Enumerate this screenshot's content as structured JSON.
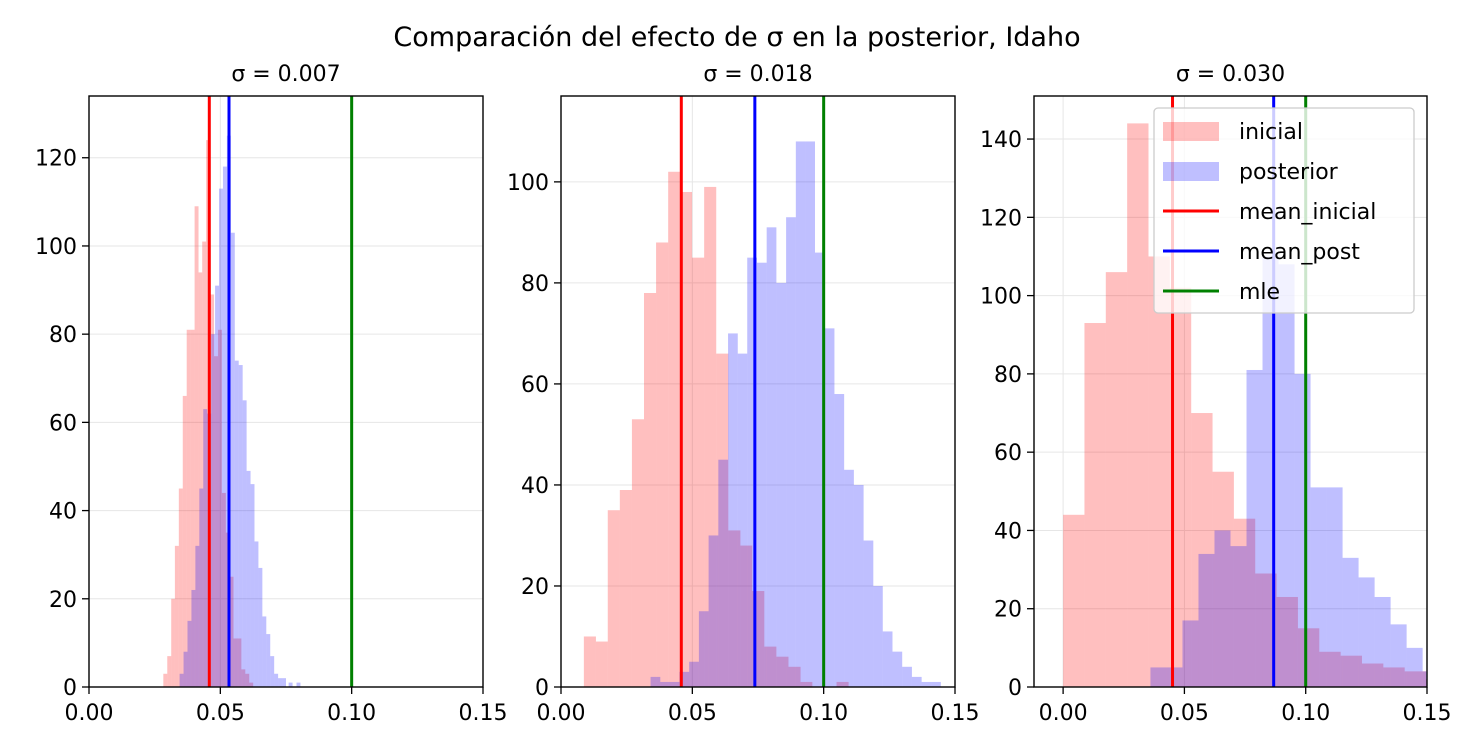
{
  "figure": {
    "suptitle": "Comparación del efecto de σ en la posterior, Idaho"
  },
  "colors": {
    "inicial": "#ff0000",
    "posterior": "#0000ff",
    "mean_inicial": "#ff0000",
    "mean_post": "#0000ff",
    "mle": "#008000"
  },
  "legend": {
    "placement": "upper right (third panel)",
    "entries": [
      {
        "label": "inicial",
        "kind": "patch",
        "color_key": "inicial"
      },
      {
        "label": "posterior",
        "kind": "patch",
        "color_key": "posterior"
      },
      {
        "label": "mean_inicial",
        "kind": "line",
        "color_key": "mean_inicial"
      },
      {
        "label": "mean_post",
        "kind": "line",
        "color_key": "mean_post"
      },
      {
        "label": "mle",
        "kind": "line",
        "color_key": "mle"
      }
    ]
  },
  "chart_data": [
    {
      "type": "histogram",
      "title": "σ = 0.007",
      "xlim": [
        0.0,
        0.15
      ],
      "ylim": [
        0,
        134
      ],
      "xticks": [
        "0.00",
        "0.05",
        "0.10",
        "0.15"
      ],
      "xtick_values": [
        0.0,
        0.05,
        0.1,
        0.15
      ],
      "yticks": [
        0,
        20,
        40,
        60,
        80,
        100,
        120
      ],
      "grid": true,
      "series": [
        {
          "name": "inicial",
          "bins": [
            [
              0.0283,
              0.0298,
              3
            ],
            [
              0.0298,
              0.0313,
              7
            ],
            [
              0.0313,
              0.0327,
              20
            ],
            [
              0.0327,
              0.0342,
              32
            ],
            [
              0.0342,
              0.0357,
              45
            ],
            [
              0.0357,
              0.0372,
              66
            ],
            [
              0.0372,
              0.0387,
              81
            ],
            [
              0.0387,
              0.0402,
              81
            ],
            [
              0.0402,
              0.0417,
              109
            ],
            [
              0.0417,
              0.0431,
              94
            ],
            [
              0.0431,
              0.0446,
              101
            ],
            [
              0.0446,
              0.0461,
              124
            ],
            [
              0.0461,
              0.0476,
              89
            ],
            [
              0.0476,
              0.0491,
              75
            ],
            [
              0.0491,
              0.0506,
              81
            ],
            [
              0.0506,
              0.0521,
              44
            ],
            [
              0.0521,
              0.0535,
              35
            ],
            [
              0.0535,
              0.055,
              25
            ],
            [
              0.055,
              0.0565,
              11
            ],
            [
              0.0565,
              0.058,
              11
            ],
            [
              0.058,
              0.0595,
              4
            ],
            [
              0.0595,
              0.061,
              3
            ],
            [
              0.061,
              0.0625,
              1
            ]
          ]
        },
        {
          "name": "posterior",
          "bins": [
            [
              0.0345,
              0.036,
              3
            ],
            [
              0.036,
              0.0375,
              8
            ],
            [
              0.0375,
              0.039,
              15
            ],
            [
              0.039,
              0.0405,
              22
            ],
            [
              0.0405,
              0.042,
              32
            ],
            [
              0.042,
              0.0435,
              45
            ],
            [
              0.0435,
              0.045,
              63
            ],
            [
              0.045,
              0.0465,
              62
            ],
            [
              0.0465,
              0.048,
              80
            ],
            [
              0.048,
              0.0495,
              91
            ],
            [
              0.0495,
              0.051,
              113
            ],
            [
              0.051,
              0.0525,
              118
            ],
            [
              0.0525,
              0.054,
              125
            ],
            [
              0.054,
              0.0555,
              103
            ],
            [
              0.0555,
              0.057,
              74
            ],
            [
              0.057,
              0.0585,
              73
            ],
            [
              0.0585,
              0.06,
              65
            ],
            [
              0.06,
              0.0615,
              49
            ],
            [
              0.0615,
              0.063,
              46
            ],
            [
              0.063,
              0.0645,
              33
            ],
            [
              0.0645,
              0.066,
              27
            ],
            [
              0.066,
              0.0675,
              16
            ],
            [
              0.0675,
              0.069,
              12
            ],
            [
              0.069,
              0.0705,
              7
            ],
            [
              0.0705,
              0.072,
              3
            ],
            [
              0.072,
              0.0735,
              2
            ],
            [
              0.0735,
              0.075,
              2
            ],
            [
              0.076,
              0.0775,
              1
            ],
            [
              0.079,
              0.0805,
              1
            ]
          ]
        }
      ],
      "vlines": [
        {
          "name": "mean_inicial",
          "x": 0.0458
        },
        {
          "name": "mean_post",
          "x": 0.0533
        },
        {
          "name": "mle",
          "x": 0.1
        }
      ]
    },
    {
      "type": "histogram",
      "title": "σ = 0.018",
      "xlim": [
        0.0,
        0.15
      ],
      "ylim": [
        0,
        117
      ],
      "xticks": [
        "0.00",
        "0.05",
        "0.10",
        "0.15"
      ],
      "xtick_values": [
        0.0,
        0.05,
        0.1,
        0.15
      ],
      "yticks": [
        0,
        20,
        40,
        60,
        80,
        100
      ],
      "grid": true,
      "series": [
        {
          "name": "inicial",
          "bins": [
            [
              0.0087,
              0.0133,
              10
            ],
            [
              0.0133,
              0.0178,
              9
            ],
            [
              0.0178,
              0.0224,
              35
            ],
            [
              0.0224,
              0.027,
              39
            ],
            [
              0.027,
              0.0316,
              53
            ],
            [
              0.0316,
              0.0362,
              78
            ],
            [
              0.0362,
              0.0408,
              88
            ],
            [
              0.0408,
              0.0453,
              102
            ],
            [
              0.0453,
              0.0499,
              98
            ],
            [
              0.0499,
              0.0545,
              85
            ],
            [
              0.0545,
              0.0591,
              99
            ],
            [
              0.0591,
              0.0637,
              66
            ],
            [
              0.0637,
              0.0683,
              31
            ],
            [
              0.0683,
              0.0728,
              28
            ],
            [
              0.0728,
              0.0774,
              19
            ],
            [
              0.0774,
              0.082,
              8
            ],
            [
              0.082,
              0.0866,
              6
            ],
            [
              0.0866,
              0.0912,
              4
            ],
            [
              0.0912,
              0.0957,
              1
            ],
            [
              0.1049,
              0.1095,
              1
            ]
          ]
        },
        {
          "name": "posterior",
          "bins": [
            [
              0.0341,
              0.0378,
              2
            ],
            [
              0.0378,
              0.0415,
              1
            ],
            [
              0.0415,
              0.0451,
              1
            ],
            [
              0.0451,
              0.0488,
              3
            ],
            [
              0.0488,
              0.0525,
              5
            ],
            [
              0.0525,
              0.0562,
              15
            ],
            [
              0.0562,
              0.0599,
              30
            ],
            [
              0.0599,
              0.0636,
              45
            ],
            [
              0.0636,
              0.0673,
              70
            ],
            [
              0.0673,
              0.0709,
              66
            ],
            [
              0.0709,
              0.0746,
              85
            ],
            [
              0.0746,
              0.0783,
              84
            ],
            [
              0.0783,
              0.082,
              91
            ],
            [
              0.082,
              0.0857,
              80
            ],
            [
              0.0857,
              0.0894,
              93
            ],
            [
              0.0894,
              0.0931,
              108
            ],
            [
              0.0931,
              0.0967,
              108
            ],
            [
              0.0967,
              0.1004,
              86
            ],
            [
              0.1004,
              0.1041,
              71
            ],
            [
              0.1041,
              0.1078,
              58
            ],
            [
              0.1078,
              0.1115,
              43
            ],
            [
              0.1115,
              0.1152,
              40
            ],
            [
              0.1152,
              0.1189,
              29
            ],
            [
              0.1189,
              0.1225,
              20
            ],
            [
              0.1225,
              0.1262,
              11
            ],
            [
              0.1262,
              0.1299,
              7
            ],
            [
              0.1299,
              0.1336,
              4
            ],
            [
              0.1336,
              0.1373,
              2
            ],
            [
              0.1373,
              0.141,
              1
            ],
            [
              0.141,
              0.1446,
              1
            ]
          ]
        }
      ],
      "vlines": [
        {
          "name": "mean_inicial",
          "x": 0.0458
        },
        {
          "name": "mean_post",
          "x": 0.0738
        },
        {
          "name": "mle",
          "x": 0.1
        }
      ]
    },
    {
      "type": "histogram",
      "title": "σ = 0.030",
      "xlim": [
        -0.012,
        0.15
      ],
      "ylim": [
        0,
        151
      ],
      "xticks": [
        "0.00",
        "0.05",
        "0.10",
        "0.15"
      ],
      "xtick_values": [
        0.0,
        0.05,
        0.1,
        0.15
      ],
      "yticks": [
        0,
        20,
        40,
        60,
        80,
        100,
        120,
        140
      ],
      "grid": true,
      "series": [
        {
          "name": "inicial",
          "bins": [
            [
              0.0,
              0.0088,
              44
            ],
            [
              0.0088,
              0.0176,
              93
            ],
            [
              0.0176,
              0.0264,
              106
            ],
            [
              0.0264,
              0.0352,
              144
            ],
            [
              0.0352,
              0.044,
              110
            ],
            [
              0.044,
              0.0528,
              102
            ],
            [
              0.0528,
              0.0616,
              70
            ],
            [
              0.0616,
              0.0704,
              55
            ],
            [
              0.0704,
              0.0792,
              43
            ],
            [
              0.0792,
              0.088,
              29
            ],
            [
              0.088,
              0.0968,
              23
            ],
            [
              0.0968,
              0.1056,
              15
            ],
            [
              0.1056,
              0.1144,
              9
            ],
            [
              0.1144,
              0.1232,
              8
            ],
            [
              0.1232,
              0.132,
              6
            ],
            [
              0.132,
              0.1408,
              5
            ],
            [
              0.1408,
              0.1496,
              4
            ],
            [
              0.1496,
              0.1584,
              2
            ],
            [
              0.1584,
              0.1672,
              1
            ]
          ]
        },
        {
          "name": "posterior",
          "bins": [
            [
              0.036,
              0.0426,
              5
            ],
            [
              0.0426,
              0.0492,
              5
            ],
            [
              0.0492,
              0.0558,
              17
            ],
            [
              0.0558,
              0.0624,
              34
            ],
            [
              0.0624,
              0.069,
              40
            ],
            [
              0.069,
              0.0756,
              36
            ],
            [
              0.0756,
              0.0822,
              81
            ],
            [
              0.0822,
              0.0888,
              110
            ],
            [
              0.0888,
              0.0954,
              108
            ],
            [
              0.0954,
              0.102,
              80
            ],
            [
              0.102,
              0.1086,
              51
            ],
            [
              0.1086,
              0.1152,
              51
            ],
            [
              0.1152,
              0.1218,
              33
            ],
            [
              0.1218,
              0.1284,
              28
            ],
            [
              0.1284,
              0.135,
              23
            ],
            [
              0.135,
              0.1416,
              16
            ],
            [
              0.1416,
              0.1482,
              10
            ],
            [
              0.1482,
              0.1548,
              4
            ]
          ]
        }
      ],
      "vlines": [
        {
          "name": "mean_inicial",
          "x": 0.0451
        },
        {
          "name": "mean_post",
          "x": 0.0868
        },
        {
          "name": "mle",
          "x": 0.1
        }
      ]
    }
  ]
}
